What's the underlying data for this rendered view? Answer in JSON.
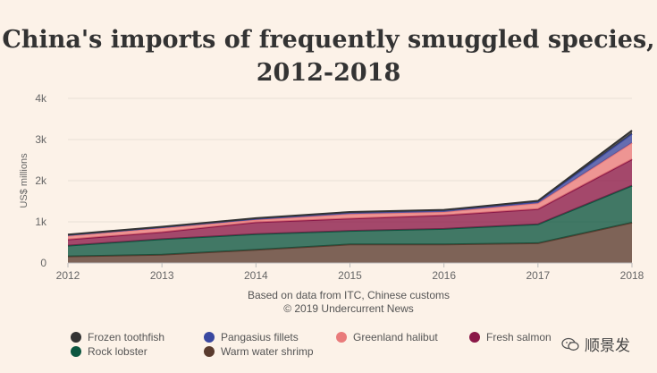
{
  "chart_data": {
    "type": "area",
    "stacked": true,
    "title": "China's imports of frequently smuggled species, 2012-2018",
    "ylabel": "US$ millions",
    "xlabel": "",
    "ylim": [
      0,
      4000
    ],
    "yticks": [
      {
        "value": 0,
        "label": "0"
      },
      {
        "value": 1000,
        "label": "1k"
      },
      {
        "value": 2000,
        "label": "2k"
      },
      {
        "value": 3000,
        "label": "3k"
      },
      {
        "value": 4000,
        "label": "4k"
      }
    ],
    "x": [
      2012,
      2013,
      2014,
      2015,
      2016,
      2017,
      2018
    ],
    "x_labels": [
      "2012",
      "2013",
      "2014",
      "2015",
      "2016",
      "2017",
      "2018"
    ],
    "series": [
      {
        "name": "Warm water shrimp",
        "color": "#5a3b2e",
        "values": [
          160,
          200,
          320,
          450,
          450,
          480,
          980
        ]
      },
      {
        "name": "Rock lobster",
        "color": "#0c5640",
        "values": [
          260,
          380,
          380,
          330,
          380,
          460,
          900
        ]
      },
      {
        "name": "Fresh salmon",
        "color": "#8a1848",
        "values": [
          150,
          170,
          290,
          300,
          330,
          370,
          640
        ]
      },
      {
        "name": "Greenland halibut",
        "color": "#e97b7b",
        "values": [
          90,
          100,
          60,
          110,
          80,
          140,
          400
        ]
      },
      {
        "name": "Pangasius fillets",
        "color": "#3a48a0",
        "values": [
          20,
          20,
          30,
          40,
          40,
          40,
          220
        ]
      },
      {
        "name": "Frozen toothfish",
        "color": "#333333",
        "values": [
          10,
          10,
          10,
          10,
          10,
          20,
          80
        ]
      }
    ],
    "legend_position": "bottom"
  },
  "source": {
    "line1": "Based on data from ITC, Chinese customs",
    "line2": "© 2019 Undercurrent News"
  },
  "legend": [
    {
      "name": "Frozen toothfish",
      "color": "#333333"
    },
    {
      "name": "Pangasius fillets",
      "color": "#3a48a0"
    },
    {
      "name": "Greenland halibut",
      "color": "#e97b7b"
    },
    {
      "name": "Fresh salmon",
      "color": "#8a1848"
    },
    {
      "name": "Rock lobster",
      "color": "#0c5640"
    },
    {
      "name": "Warm water shrimp",
      "color": "#5a3b2e"
    }
  ],
  "watermark": {
    "text": "顺景发"
  }
}
